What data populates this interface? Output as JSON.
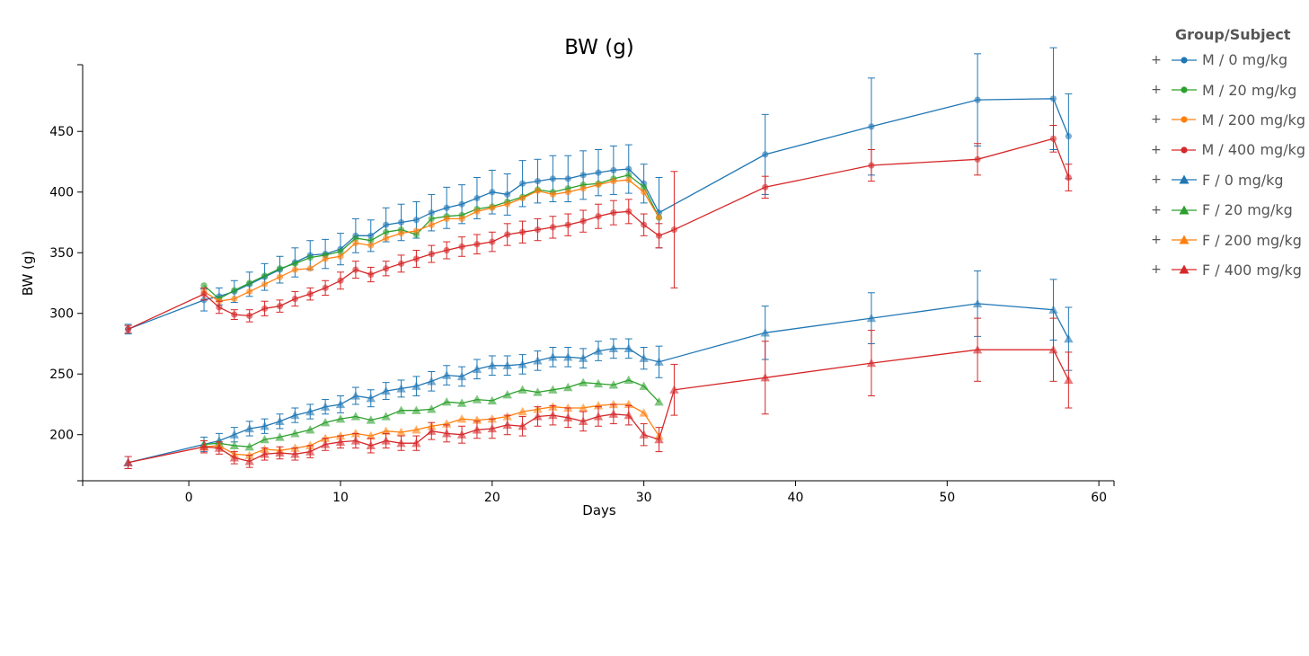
{
  "legend": {
    "title": "Group/Subject",
    "expand_symbol": "+"
  },
  "chart_data": {
    "type": "line",
    "title": "BW (g)",
    "xlabel": "Days",
    "ylabel": "BW (g)",
    "xlim": [
      -7,
      61
    ],
    "ylim": [
      162,
      505
    ],
    "xticks": [
      0,
      10,
      20,
      30,
      40,
      50,
      60
    ],
    "yticks": [
      200,
      250,
      300,
      350,
      400,
      450
    ],
    "grid": false,
    "legend_position": "right",
    "series": [
      {
        "name": "M / 0 mg/kg",
        "color": "#1f77b4",
        "marker": "circle",
        "x": [
          -4,
          1,
          2,
          3,
          4,
          5,
          6,
          7,
          8,
          9,
          10,
          11,
          12,
          13,
          14,
          15,
          16,
          17,
          18,
          19,
          20,
          21,
          22,
          23,
          24,
          25,
          26,
          27,
          28,
          29,
          30,
          31,
          38,
          45,
          52,
          57,
          58
        ],
        "y": [
          287,
          311,
          314,
          318,
          324,
          330,
          336,
          342,
          348,
          349,
          353,
          364,
          364,
          373,
          375,
          377,
          383,
          387,
          390,
          395,
          400,
          398,
          407,
          409,
          411,
          411,
          414,
          416,
          418,
          419,
          407,
          383,
          431,
          454,
          476,
          477,
          446
        ],
        "err": [
          4,
          9,
          7,
          9,
          10,
          11,
          11,
          12,
          12,
          12,
          13,
          14,
          13,
          14,
          15,
          15,
          15,
          17,
          16,
          17,
          18,
          17,
          19,
          18,
          19,
          19,
          20,
          19,
          20,
          20,
          16,
          29,
          33,
          40,
          38,
          42,
          35
        ]
      },
      {
        "name": "M / 20 mg/kg",
        "color": "#2ca02c",
        "marker": "circle",
        "x": [
          1,
          2,
          3,
          4,
          5,
          6,
          7,
          8,
          9,
          10,
          11,
          12,
          13,
          14,
          15,
          16,
          17,
          18,
          19,
          20,
          21,
          22,
          23,
          24,
          25,
          26,
          27,
          28,
          29,
          30,
          31
        ],
        "y": [
          323,
          312,
          319,
          325,
          331,
          337,
          341,
          346,
          348,
          351,
          362,
          360,
          367,
          369,
          365,
          378,
          380,
          381,
          386,
          388,
          392,
          396,
          402,
          400,
          403,
          406,
          407,
          411,
          414,
          404,
          379
        ],
        "err": []
      },
      {
        "name": "M / 200 mg/kg",
        "color": "#ff7f0e",
        "marker": "circle",
        "x": [
          1,
          2,
          3,
          4,
          5,
          6,
          7,
          8,
          9,
          10,
          11,
          12,
          13,
          14,
          15,
          16,
          17,
          18,
          19,
          20,
          21,
          22,
          23,
          24,
          25,
          26,
          27,
          28,
          29,
          30,
          31
        ],
        "y": [
          318,
          310,
          312,
          318,
          324,
          330,
          336,
          337,
          345,
          347,
          358,
          356,
          362,
          366,
          368,
          373,
          378,
          378,
          384,
          387,
          390,
          395,
          401,
          398,
          400,
          403,
          406,
          409,
          410,
          400,
          379
        ],
        "err": []
      },
      {
        "name": "M / 400 mg/kg",
        "color": "#d62728",
        "marker": "circle",
        "x": [
          -4,
          1,
          2,
          3,
          4,
          5,
          6,
          7,
          8,
          9,
          10,
          11,
          12,
          13,
          14,
          15,
          16,
          17,
          18,
          19,
          20,
          21,
          22,
          23,
          24,
          25,
          26,
          27,
          28,
          29,
          30,
          31,
          32,
          38,
          45,
          52,
          57,
          58
        ],
        "y": [
          287,
          316,
          305,
          299,
          298,
          304,
          306,
          312,
          316,
          321,
          327,
          336,
          332,
          337,
          341,
          345,
          349,
          352,
          355,
          357,
          359,
          365,
          367,
          369,
          371,
          373,
          376,
          380,
          383,
          384,
          373,
          364,
          369,
          404,
          422,
          427,
          444,
          412
        ],
        "err": [
          3,
          5,
          5,
          4,
          5,
          6,
          5,
          6,
          5,
          6,
          7,
          7,
          6,
          6,
          7,
          7,
          7,
          7,
          8,
          8,
          8,
          9,
          9,
          9,
          9,
          9,
          9,
          10,
          10,
          10,
          9,
          10,
          48,
          9,
          13,
          13,
          11,
          11
        ]
      },
      {
        "name": "F / 0 mg/kg",
        "color": "#1f77b4",
        "marker": "triangle",
        "x": [
          -4,
          1,
          2,
          3,
          4,
          5,
          6,
          7,
          8,
          9,
          10,
          11,
          12,
          13,
          14,
          15,
          16,
          17,
          18,
          19,
          20,
          21,
          22,
          23,
          24,
          25,
          26,
          27,
          28,
          29,
          30,
          31,
          38,
          45,
          52,
          57,
          58
        ],
        "y": [
          177,
          192,
          195,
          200,
          205,
          207,
          211,
          216,
          219,
          223,
          225,
          232,
          230,
          236,
          238,
          240,
          244,
          249,
          248,
          254,
          257,
          257,
          258,
          261,
          264,
          264,
          263,
          269,
          271,
          271,
          263,
          260,
          284,
          296,
          308,
          303,
          279
        ],
        "err": [
          5,
          6,
          6,
          6,
          6,
          6,
          6,
          6,
          6,
          6,
          7,
          7,
          7,
          7,
          7,
          8,
          8,
          8,
          8,
          8,
          8,
          8,
          8,
          8,
          8,
          8,
          8,
          8,
          8,
          8,
          9,
          13,
          22,
          21,
          27,
          25,
          26
        ]
      },
      {
        "name": "F / 20 mg/kg",
        "color": "#2ca02c",
        "marker": "triangle",
        "x": [
          1,
          2,
          3,
          4,
          5,
          6,
          7,
          8,
          9,
          10,
          11,
          12,
          13,
          14,
          15,
          16,
          17,
          18,
          19,
          20,
          21,
          22,
          23,
          24,
          25,
          26,
          27,
          28,
          29,
          30,
          31
        ],
        "y": [
          192,
          193,
          191,
          190,
          196,
          198,
          201,
          204,
          210,
          213,
          215,
          212,
          215,
          220,
          220,
          221,
          227,
          226,
          229,
          228,
          233,
          237,
          235,
          237,
          239,
          243,
          242,
          241,
          245,
          240,
          227
        ],
        "err": []
      },
      {
        "name": "F / 200 mg/kg",
        "color": "#ff7f0e",
        "marker": "triangle",
        "x": [
          1,
          2,
          3,
          4,
          5,
          6,
          7,
          8,
          9,
          10,
          11,
          12,
          13,
          14,
          15,
          16,
          17,
          18,
          19,
          20,
          21,
          22,
          23,
          24,
          25,
          26,
          27,
          28,
          29,
          30,
          31
        ],
        "y": [
          190,
          191,
          184,
          183,
          188,
          187,
          189,
          191,
          197,
          199,
          201,
          199,
          203,
          202,
          204,
          207,
          209,
          213,
          212,
          213,
          215,
          219,
          221,
          223,
          222,
          222,
          224,
          225,
          225,
          218,
          199
        ],
        "err": []
      },
      {
        "name": "F / 400 mg/kg",
        "color": "#d62728",
        "marker": "triangle",
        "x": [
          -4,
          1,
          2,
          3,
          4,
          5,
          6,
          7,
          8,
          9,
          10,
          11,
          12,
          13,
          14,
          15,
          16,
          17,
          18,
          19,
          20,
          21,
          22,
          23,
          24,
          25,
          26,
          27,
          28,
          29,
          30,
          31,
          32,
          38,
          45,
          52,
          57,
          58
        ],
        "y": [
          177,
          190,
          189,
          181,
          178,
          184,
          185,
          184,
          186,
          192,
          194,
          195,
          191,
          195,
          193,
          193,
          203,
          201,
          200,
          204,
          205,
          208,
          207,
          215,
          216,
          214,
          211,
          215,
          217,
          216,
          200,
          196,
          237,
          247,
          259,
          270,
          270,
          245
        ],
        "err": [
          5,
          5,
          5,
          5,
          5,
          5,
          5,
          5,
          5,
          5,
          5,
          6,
          6,
          6,
          6,
          6,
          7,
          7,
          7,
          7,
          8,
          8,
          8,
          8,
          8,
          8,
          8,
          8,
          8,
          8,
          9,
          10,
          21,
          30,
          27,
          26,
          26,
          23
        ]
      }
    ]
  }
}
